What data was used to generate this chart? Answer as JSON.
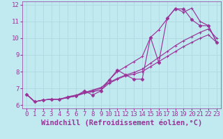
{
  "xlabel": "Windchill (Refroidissement éolien,°C)",
  "xlim": [
    -0.5,
    23.5
  ],
  "ylim": [
    5.8,
    12.2
  ],
  "yticks": [
    6,
    7,
    8,
    9,
    10,
    11,
    12
  ],
  "xticks": [
    0,
    1,
    2,
    3,
    4,
    5,
    6,
    7,
    8,
    9,
    10,
    11,
    12,
    13,
    14,
    15,
    16,
    17,
    18,
    19,
    20,
    21,
    22,
    23
  ],
  "bg_color": "#c0eaf0",
  "line_color": "#993399",
  "grid_color": "#b0d8e0",
  "x": [
    0,
    1,
    2,
    3,
    4,
    5,
    6,
    7,
    8,
    9,
    10,
    11,
    12,
    13,
    14,
    15,
    16,
    17,
    18,
    19,
    20,
    21,
    22,
    23
  ],
  "line_jagged": [
    6.65,
    6.2,
    6.3,
    6.35,
    6.35,
    6.45,
    6.55,
    6.85,
    6.6,
    6.85,
    7.5,
    8.1,
    7.8,
    7.55,
    7.55,
    10.05,
    8.55,
    11.2,
    11.75,
    11.75,
    11.1,
    10.75,
    10.75,
    9.75
  ],
  "line_diag1": [
    6.65,
    6.2,
    6.3,
    6.35,
    6.35,
    6.45,
    6.55,
    6.7,
    6.8,
    6.9,
    7.3,
    7.55,
    7.75,
    7.85,
    8.0,
    8.3,
    8.6,
    8.9,
    9.2,
    9.5,
    9.75,
    10.0,
    10.2,
    9.75
  ],
  "line_diag2": [
    6.65,
    6.2,
    6.3,
    6.35,
    6.35,
    6.5,
    6.6,
    6.75,
    6.9,
    7.05,
    7.35,
    7.6,
    7.8,
    7.95,
    8.15,
    8.5,
    8.85,
    9.2,
    9.55,
    9.85,
    10.1,
    10.35,
    10.55,
    10.0
  ],
  "line_steep": [
    6.65,
    6.2,
    6.3,
    6.35,
    6.35,
    6.45,
    6.55,
    6.75,
    6.85,
    7.0,
    7.5,
    8.0,
    8.3,
    8.6,
    8.9,
    10.05,
    10.5,
    11.15,
    11.8,
    11.55,
    11.8,
    11.0,
    10.75,
    9.75
  ],
  "font_family": "monospace",
  "tick_fontsize": 6.5,
  "label_fontsize": 7.5
}
